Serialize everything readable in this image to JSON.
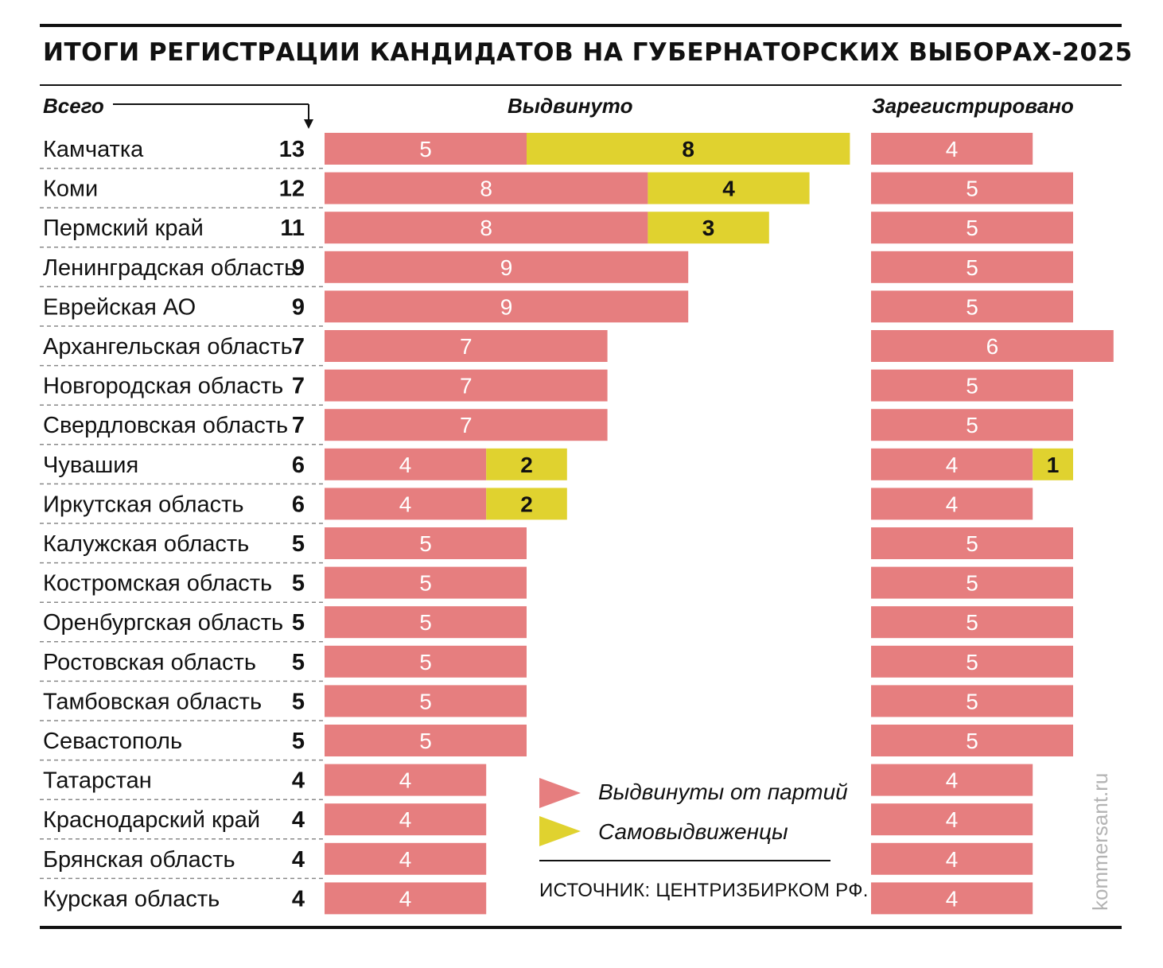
{
  "title": "ИТОГИ РЕГИСТРАЦИИ КАНДИДАТОВ НА ГУБЕРНАТОРСКИХ ВЫБОРАХ-2025",
  "headers": {
    "total": "Всего",
    "nominated": "Выдвинуто",
    "registered": "Зарегистрировано"
  },
  "legend": {
    "party": "Выдвинуты от партий",
    "self": "Самовыдвиженцы"
  },
  "source": "ИСТОЧНИК: ЦЕНТРИЗБИРКОМ РФ.",
  "watermark": "kommersant.ru",
  "colors": {
    "party": "#e67e7f",
    "self": "#e0d22f",
    "text_on_party": "#ffffff",
    "text_on_self": "#111111"
  },
  "chart_data": {
    "type": "bar",
    "orientation": "horizontal",
    "stacked": true,
    "categories": [
      "Камчатка",
      "Коми",
      "Пермский край",
      "Ленинградская область",
      "Еврейская АО",
      "Архангельская область",
      "Новгородская область",
      "Свердловская область",
      "Чувашия",
      "Иркутская область",
      "Калужская область",
      "Костромская область",
      "Оренбургская область",
      "Ростовская область",
      "Тамбовская область",
      "Севастополь",
      "Татарстан",
      "Краснодарский край",
      "Брянская область",
      "Курская область"
    ],
    "totals": [
      13,
      12,
      11,
      9,
      9,
      7,
      7,
      7,
      6,
      6,
      5,
      5,
      5,
      5,
      5,
      5,
      4,
      4,
      4,
      4
    ],
    "nominated": [
      {
        "name": "Выдвинуты от партий",
        "values": [
          5,
          8,
          8,
          9,
          9,
          7,
          7,
          7,
          4,
          4,
          5,
          5,
          5,
          5,
          5,
          5,
          4,
          4,
          4,
          4
        ]
      },
      {
        "name": "Самовыдвиженцы",
        "values": [
          8,
          4,
          3,
          0,
          0,
          0,
          0,
          0,
          2,
          2,
          0,
          0,
          0,
          0,
          0,
          0,
          0,
          0,
          0,
          0
        ]
      }
    ],
    "registered": [
      {
        "name": "Выдвинуты от партий",
        "values": [
          4,
          5,
          5,
          5,
          5,
          6,
          5,
          5,
          4,
          4,
          5,
          5,
          5,
          5,
          5,
          5,
          4,
          4,
          4,
          4
        ]
      },
      {
        "name": "Самовыдвиженцы",
        "values": [
          0,
          0,
          0,
          0,
          0,
          0,
          0,
          0,
          1,
          0,
          0,
          0,
          0,
          0,
          0,
          0,
          0,
          0,
          0,
          0
        ]
      }
    ]
  }
}
